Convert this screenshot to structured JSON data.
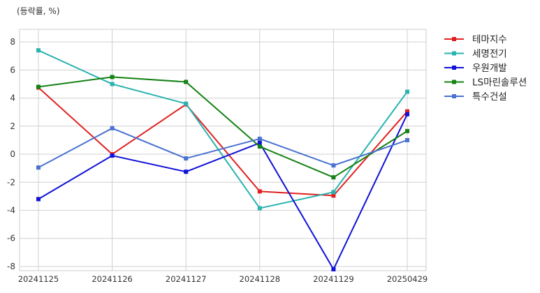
{
  "chart_data": {
    "type": "line",
    "title": "",
    "unit_label": "(등락률, %)",
    "xlabel": "",
    "ylabel": "",
    "categories": [
      "20241125",
      "20241126",
      "20241127",
      "20241128",
      "20241129",
      "20250429"
    ],
    "ylim": [
      -8.3,
      8.9
    ],
    "yticks": [
      -8,
      -6,
      -4,
      -2,
      0,
      2,
      4,
      6,
      8
    ],
    "grid": true,
    "legend_position": "right-top",
    "series": [
      {
        "name": "테마지수",
        "color": "#e02020",
        "values": [
          4.75,
          0.0,
          3.55,
          -2.65,
          -2.95,
          3.05
        ]
      },
      {
        "name": "세명전기",
        "color": "#2ab3b0",
        "values": [
          7.4,
          5.0,
          3.6,
          -3.85,
          -2.7,
          4.45
        ]
      },
      {
        "name": "우원개발",
        "color": "#1010d8",
        "values": [
          -3.2,
          -0.1,
          -1.25,
          0.8,
          -8.2,
          2.85
        ]
      },
      {
        "name": "LS마린솔루션",
        "color": "#148214",
        "values": [
          4.8,
          5.5,
          5.15,
          0.55,
          -1.65,
          1.65
        ]
      },
      {
        "name": "특수건설",
        "color": "#4a72d0",
        "values": [
          -0.95,
          1.85,
          -0.3,
          1.1,
          -0.8,
          1.0
        ]
      }
    ]
  }
}
